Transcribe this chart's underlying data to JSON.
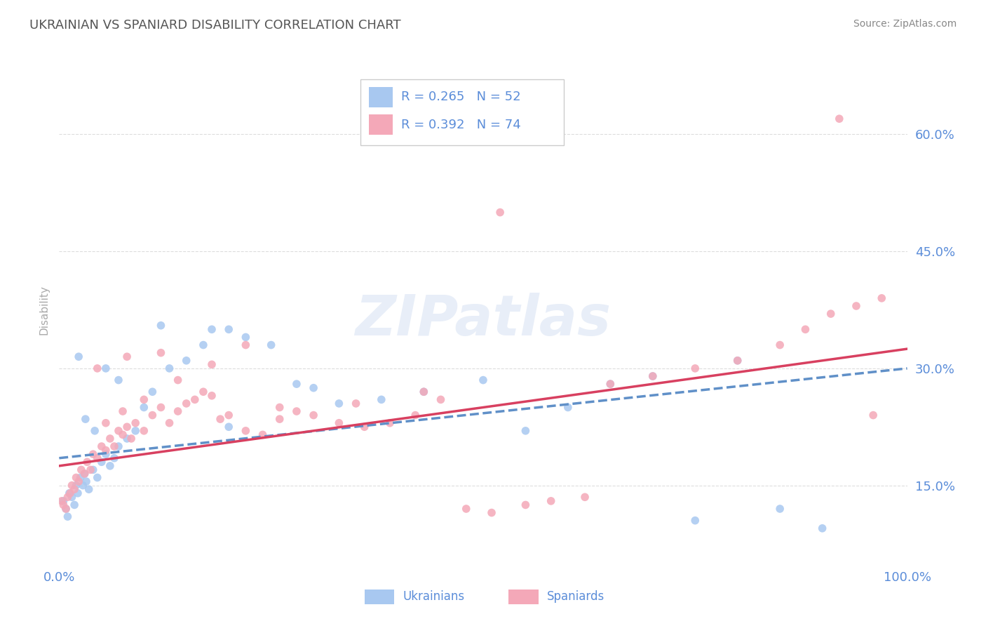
{
  "title": "UKRAINIAN VS SPANIARD DISABILITY CORRELATION CHART",
  "source": "Source: ZipAtlas.com",
  "ylabel": "Disability",
  "xlim": [
    0,
    100
  ],
  "ylim": [
    5,
    70
  ],
  "yticks": [
    15,
    30,
    45,
    60
  ],
  "ytick_labels": [
    "15.0%",
    "30.0%",
    "45.0%",
    "60.0%"
  ],
  "xtick_labels": [
    "0.0%",
    "100.0%"
  ],
  "r_ukrainian": 0.265,
  "n_ukrainian": 52,
  "r_spaniard": 0.392,
  "n_spaniard": 74,
  "color_ukrainian": "#a8c8f0",
  "color_spaniard": "#f4a8b8",
  "color_line_ukrainian": "#6090c8",
  "color_line_spaniard": "#d84060",
  "color_text": "#5b8dd9",
  "background_color": "#ffffff",
  "title_color": "#555555",
  "grid_color": "#dddddd",
  "watermark_color": "#e8eef8",
  "source_color": "#888888",
  "ylabel_color": "#aaaaaa",
  "legend_border_color": "#cccccc",
  "ukr_x": [
    0.5,
    0.8,
    1.0,
    1.2,
    1.5,
    1.8,
    2.0,
    2.2,
    2.5,
    2.8,
    3.0,
    3.2,
    3.5,
    4.0,
    4.5,
    5.0,
    5.5,
    6.0,
    6.5,
    7.0,
    8.0,
    9.0,
    10.0,
    11.0,
    13.0,
    15.0,
    17.0,
    20.0,
    22.0,
    25.0,
    28.0,
    30.0,
    33.0,
    38.0,
    43.0,
    50.0,
    55.0,
    60.0,
    65.0,
    70.0,
    75.0,
    80.0,
    85.0,
    20.0,
    18.0,
    12.0,
    7.0,
    5.5,
    4.2,
    3.1,
    2.3,
    90.0
  ],
  "ukr_y": [
    13.0,
    12.0,
    11.0,
    14.0,
    13.5,
    12.5,
    15.0,
    14.0,
    16.0,
    15.0,
    16.5,
    15.5,
    14.5,
    17.0,
    16.0,
    18.0,
    19.0,
    17.5,
    18.5,
    20.0,
    21.0,
    22.0,
    25.0,
    27.0,
    30.0,
    31.0,
    33.0,
    35.0,
    34.0,
    33.0,
    28.0,
    27.5,
    25.5,
    26.0,
    27.0,
    28.5,
    22.0,
    25.0,
    28.0,
    29.0,
    10.5,
    31.0,
    12.0,
    22.5,
    35.0,
    35.5,
    28.5,
    30.0,
    22.0,
    23.5,
    31.5,
    9.5
  ],
  "spa_x": [
    0.3,
    0.5,
    0.8,
    1.0,
    1.3,
    1.5,
    1.8,
    2.0,
    2.3,
    2.6,
    3.0,
    3.3,
    3.7,
    4.0,
    4.5,
    5.0,
    5.5,
    6.0,
    6.5,
    7.0,
    7.5,
    8.0,
    8.5,
    9.0,
    10.0,
    11.0,
    12.0,
    13.0,
    14.0,
    15.0,
    16.0,
    17.0,
    18.0,
    19.0,
    20.0,
    22.0,
    24.0,
    26.0,
    28.0,
    30.0,
    33.0,
    36.0,
    39.0,
    42.0,
    45.0,
    48.0,
    51.0,
    55.0,
    58.0,
    62.0,
    65.0,
    70.0,
    75.0,
    80.0,
    85.0,
    88.0,
    91.0,
    94.0,
    97.0,
    4.5,
    8.0,
    12.0,
    5.5,
    7.5,
    10.0,
    14.0,
    18.0,
    22.0,
    26.0,
    35.0,
    43.0,
    52.0,
    92.0,
    96.0
  ],
  "spa_y": [
    13.0,
    12.5,
    12.0,
    13.5,
    14.0,
    15.0,
    14.5,
    16.0,
    15.5,
    17.0,
    16.5,
    18.0,
    17.0,
    19.0,
    18.5,
    20.0,
    19.5,
    21.0,
    20.0,
    22.0,
    21.5,
    22.5,
    21.0,
    23.0,
    22.0,
    24.0,
    25.0,
    23.0,
    24.5,
    25.5,
    26.0,
    27.0,
    26.5,
    23.5,
    24.0,
    22.0,
    21.5,
    23.5,
    24.5,
    24.0,
    23.0,
    22.5,
    23.0,
    24.0,
    26.0,
    12.0,
    11.5,
    12.5,
    13.0,
    13.5,
    28.0,
    29.0,
    30.0,
    31.0,
    33.0,
    35.0,
    37.0,
    38.0,
    39.0,
    30.0,
    31.5,
    32.0,
    23.0,
    24.5,
    26.0,
    28.5,
    30.5,
    33.0,
    25.0,
    25.5,
    27.0,
    50.0,
    62.0,
    24.0
  ],
  "trend_ukr_y0": 18.5,
  "trend_ukr_y1": 30.0,
  "trend_spa_y0": 17.5,
  "trend_spa_y1": 32.5
}
